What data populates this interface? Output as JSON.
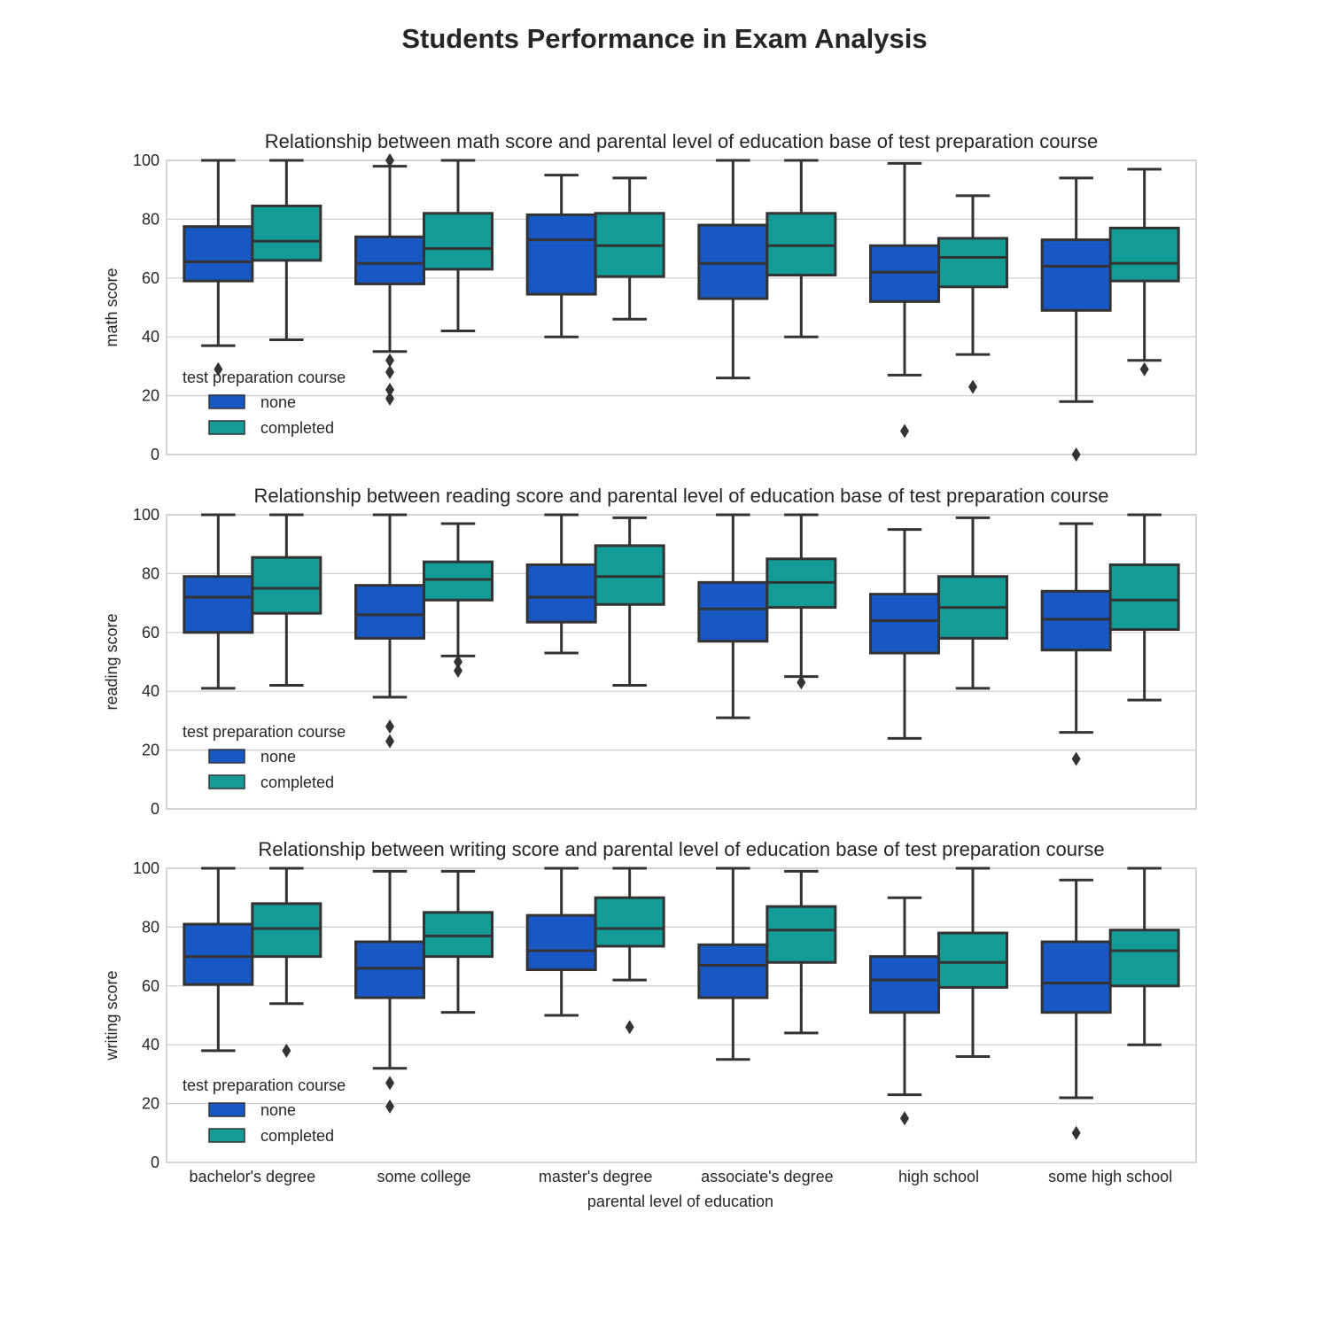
{
  "colors": {
    "none": "#1758c5",
    "completed": "#129b97",
    "line": "#333333",
    "grid": "#cccccc"
  },
  "chart_data": {
    "type": "box",
    "title": "Students Performance in Exam Analysis",
    "categories": [
      "bachelor's degree",
      "some college",
      "master's degree",
      "associate's degree",
      "high school",
      "some high school"
    ],
    "xlabel": "parental level of education",
    "legend": {
      "title": "test preparation course",
      "entries": [
        "none",
        "completed"
      ],
      "placement": "center-left"
    },
    "grid": true,
    "panels": [
      {
        "title": "Relationship between math score and parental level of education base of test preparation course",
        "ylabel": "math score",
        "ylim": [
          0,
          100
        ],
        "yticks": [
          "0",
          "20",
          "40",
          "60",
          "80",
          "100"
        ],
        "series": [
          {
            "name": "none",
            "boxes": [
              {
                "whislo": 37,
                "q1": 59,
                "med": 65.5,
                "q3": 77.5,
                "whishi": 100,
                "fliers": [
                  29
                ]
              },
              {
                "whislo": 35,
                "q1": 58,
                "med": 65,
                "q3": 74,
                "whishi": 98,
                "fliers": [
                  100,
                  32,
                  28,
                  22,
                  19
                ]
              },
              {
                "whislo": 40,
                "q1": 54.5,
                "med": 73,
                "q3": 81.5,
                "whishi": 95,
                "fliers": []
              },
              {
                "whislo": 26,
                "q1": 53,
                "med": 65,
                "q3": 78,
                "whishi": 100,
                "fliers": []
              },
              {
                "whislo": 27,
                "q1": 52,
                "med": 62,
                "q3": 71,
                "whishi": 99,
                "fliers": [
                  8
                ]
              },
              {
                "whislo": 18,
                "q1": 49,
                "med": 64,
                "q3": 73,
                "whishi": 94,
                "fliers": [
                  0
                ]
              }
            ]
          },
          {
            "name": "completed",
            "boxes": [
              {
                "whislo": 39,
                "q1": 66,
                "med": 72.5,
                "q3": 84.5,
                "whishi": 100,
                "fliers": []
              },
              {
                "whislo": 42,
                "q1": 63,
                "med": 70,
                "q3": 82,
                "whishi": 100,
                "fliers": []
              },
              {
                "whislo": 46,
                "q1": 60.5,
                "med": 71,
                "q3": 82,
                "whishi": 94,
                "fliers": []
              },
              {
                "whislo": 40,
                "q1": 61,
                "med": 71,
                "q3": 82,
                "whishi": 100,
                "fliers": []
              },
              {
                "whislo": 34,
                "q1": 57,
                "med": 67,
                "q3": 73.5,
                "whishi": 88,
                "fliers": [
                  23
                ]
              },
              {
                "whislo": 32,
                "q1": 59,
                "med": 65,
                "q3": 77,
                "whishi": 97,
                "fliers": [
                  29
                ]
              }
            ]
          }
        ]
      },
      {
        "title": "Relationship between reading score and parental level of education base of test preparation course",
        "ylabel": "reading score",
        "ylim": [
          0,
          100
        ],
        "yticks": [
          "0",
          "20",
          "40",
          "60",
          "80",
          "100"
        ],
        "series": [
          {
            "name": "none",
            "boxes": [
              {
                "whislo": 41,
                "q1": 60,
                "med": 72,
                "q3": 79,
                "whishi": 100,
                "fliers": []
              },
              {
                "whislo": 38,
                "q1": 58,
                "med": 66,
                "q3": 76,
                "whishi": 100,
                "fliers": [
                  28,
                  23
                ]
              },
              {
                "whislo": 53,
                "q1": 63.5,
                "med": 72,
                "q3": 83,
                "whishi": 100,
                "fliers": []
              },
              {
                "whislo": 31,
                "q1": 57,
                "med": 68,
                "q3": 77,
                "whishi": 100,
                "fliers": []
              },
              {
                "whislo": 24,
                "q1": 53,
                "med": 64,
                "q3": 73,
                "whishi": 95,
                "fliers": []
              },
              {
                "whislo": 26,
                "q1": 54,
                "med": 64.5,
                "q3": 74,
                "whishi": 97,
                "fliers": [
                  17
                ]
              }
            ]
          },
          {
            "name": "completed",
            "boxes": [
              {
                "whislo": 42,
                "q1": 66.5,
                "med": 75,
                "q3": 85.5,
                "whishi": 100,
                "fliers": []
              },
              {
                "whislo": 52,
                "q1": 71,
                "med": 78,
                "q3": 84,
                "whishi": 97,
                "fliers": [
                  50,
                  47
                ]
              },
              {
                "whislo": 42,
                "q1": 69.5,
                "med": 79,
                "q3": 89.5,
                "whishi": 99,
                "fliers": []
              },
              {
                "whislo": 45,
                "q1": 68.5,
                "med": 77,
                "q3": 85,
                "whishi": 100,
                "fliers": [
                  43
                ]
              },
              {
                "whislo": 41,
                "q1": 58,
                "med": 68.5,
                "q3": 79,
                "whishi": 99,
                "fliers": []
              },
              {
                "whislo": 37,
                "q1": 61,
                "med": 71,
                "q3": 83,
                "whishi": 100,
                "fliers": []
              }
            ]
          }
        ]
      },
      {
        "title": "Relationship between writing score and parental level of education base of test preparation course",
        "ylabel": "writing score",
        "ylim": [
          0,
          100
        ],
        "yticks": [
          "0",
          "20",
          "40",
          "60",
          "80",
          "100"
        ],
        "series": [
          {
            "name": "none",
            "boxes": [
              {
                "whislo": 38,
                "q1": 60.5,
                "med": 70,
                "q3": 81,
                "whishi": 100,
                "fliers": []
              },
              {
                "whislo": 32,
                "q1": 56,
                "med": 66,
                "q3": 75,
                "whishi": 99,
                "fliers": [
                  27,
                  19
                ]
              },
              {
                "whislo": 50,
                "q1": 65.5,
                "med": 72,
                "q3": 84,
                "whishi": 100,
                "fliers": []
              },
              {
                "whislo": 35,
                "q1": 56,
                "med": 67,
                "q3": 74,
                "whishi": 100,
                "fliers": []
              },
              {
                "whislo": 23,
                "q1": 51,
                "med": 62,
                "q3": 70,
                "whishi": 90,
                "fliers": [
                  15
                ]
              },
              {
                "whislo": 22,
                "q1": 51,
                "med": 61,
                "q3": 75,
                "whishi": 96,
                "fliers": [
                  10
                ]
              }
            ]
          },
          {
            "name": "completed",
            "boxes": [
              {
                "whislo": 54,
                "q1": 70,
                "med": 79.5,
                "q3": 88,
                "whishi": 100,
                "fliers": [
                  38
                ]
              },
              {
                "whislo": 51,
                "q1": 70,
                "med": 77,
                "q3": 85,
                "whishi": 99,
                "fliers": []
              },
              {
                "whislo": 62,
                "q1": 73.5,
                "med": 79.5,
                "q3": 90,
                "whishi": 100,
                "fliers": [
                  46
                ]
              },
              {
                "whislo": 44,
                "q1": 68,
                "med": 79,
                "q3": 87,
                "whishi": 99,
                "fliers": []
              },
              {
                "whislo": 36,
                "q1": 59.5,
                "med": 68,
                "q3": 78,
                "whishi": 100,
                "fliers": []
              },
              {
                "whislo": 40,
                "q1": 60,
                "med": 72,
                "q3": 79,
                "whishi": 100,
                "fliers": []
              }
            ]
          }
        ]
      }
    ]
  }
}
